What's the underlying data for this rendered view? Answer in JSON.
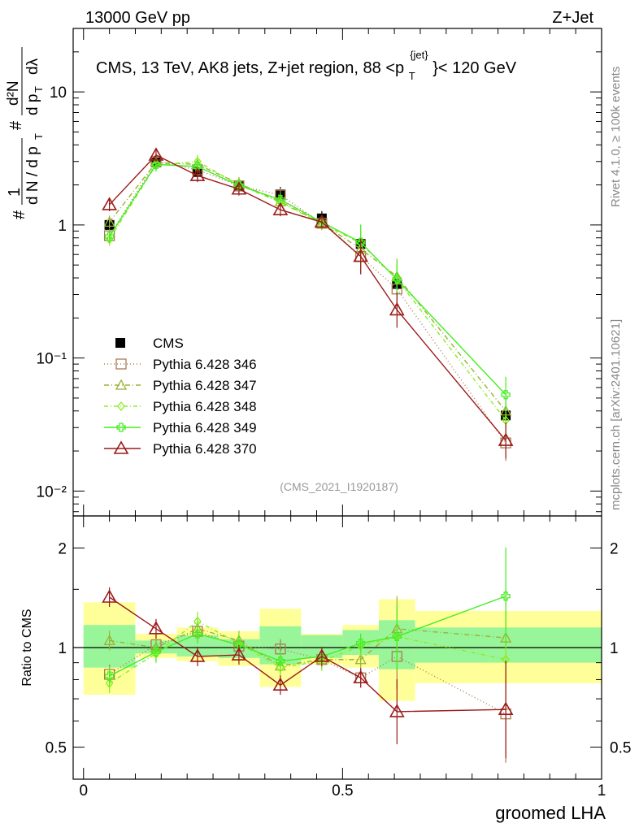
{
  "header": {
    "left": "13000 GeV pp",
    "right": "Z+Jet"
  },
  "side_labels": {
    "rivet": "Rivet 4.1.0, ≥ 100k events",
    "mcplots": "mcplots.cern.ch [arXiv:2401.10621]"
  },
  "chart_data": [
    {
      "type": "line",
      "panel": "main",
      "title": "CMS, 13 TeV, AK8 jets, Z+jet region, 88 < p_T^{jet} < 120 GeV",
      "title_text": {
        "prefix": "CMS, 13 TeV, AK8 jets, Z+jet region, 88 <p",
        "sub": "T",
        "sup": "{jet}",
        "suffix": "}< 120 GeV"
      },
      "ylabel": "1/dN/dp_T  d²N/(dp_T dλ)",
      "ylabel_text": {
        "hash1": "#",
        "one": "1",
        "denom": "d N / d p",
        "sub": "T",
        "hash2": "#",
        "num": "d²N",
        "dpt": "d p",
        "dlambda": "dλ"
      },
      "yscale": "log",
      "ylim": [
        0.0065,
        30
      ],
      "xlim": [
        -0.02,
        1.0
      ],
      "y_ticks": [
        "10⁻²",
        "10⁻¹",
        "1",
        "10"
      ],
      "watermark": "(CMS_2021_I1920187)",
      "legend_position": "center-left",
      "x": [
        0.05,
        0.14,
        0.22,
        0.3,
        0.38,
        0.46,
        0.535,
        0.605,
        0.815
      ],
      "series": [
        {
          "name": "CMS",
          "style": "data",
          "color": "#000000",
          "values": [
            1.0,
            2.95,
            2.5,
            1.95,
            1.7,
            1.12,
            0.72,
            0.36,
            0.037
          ]
        },
        {
          "name": "Pythia 6.428 346",
          "color": "#a97c50",
          "marker": "square",
          "dash": "1,3",
          "values": [
            0.83,
            3.0,
            2.6,
            1.97,
            1.68,
            1.03,
            0.58,
            0.33,
            0.023
          ]
        },
        {
          "name": "Pythia 6.428 347",
          "color": "#99b233",
          "marker": "triangle",
          "dash": "6,3,1,3",
          "values": [
            1.05,
            2.95,
            2.85,
            2.05,
            1.5,
            1.03,
            0.66,
            0.41,
            0.04
          ]
        },
        {
          "name": "Pythia 6.428 348",
          "color": "#88ee22",
          "marker": "diamond",
          "dash": "5,3,1,3",
          "values": [
            0.78,
            2.82,
            3.0,
            2.0,
            1.48,
            1.02,
            0.73,
            0.39,
            0.034
          ]
        },
        {
          "name": "Pythia 6.428 349",
          "color": "#44ee22",
          "marker": "cross",
          "dash": "",
          "values": [
            0.82,
            2.85,
            2.75,
            1.98,
            1.55,
            1.05,
            0.74,
            0.39,
            0.053
          ]
        },
        {
          "name": "Pythia 6.428 370",
          "color": "#9c1a1a",
          "marker": "triangle-open",
          "dash": "",
          "values": [
            1.42,
            3.35,
            2.35,
            1.86,
            1.3,
            1.05,
            0.58,
            0.23,
            0.024
          ]
        }
      ]
    },
    {
      "type": "line",
      "panel": "ratio",
      "ylabel": "Ratio to CMS",
      "xlabel": "groomed LHA",
      "ylim": [
        0.4,
        2.5
      ],
      "y_ticks": [
        0.5,
        1,
        2
      ],
      "y_tick_labels": [
        "0.5",
        "1",
        "2"
      ],
      "x_ticks": [
        0,
        0.5,
        1
      ],
      "x_tick_labels": [
        "0",
        "0.5",
        "1"
      ],
      "bins": [
        0.0,
        0.1,
        0.18,
        0.26,
        0.34,
        0.42,
        0.5,
        0.57,
        0.64,
        1.0
      ],
      "uncertainty_inner": [
        [
          0.87,
          1.17
        ],
        [
          0.96,
          1.05
        ],
        [
          0.94,
          1.09
        ],
        [
          0.93,
          1.06
        ],
        [
          0.89,
          1.16
        ],
        [
          0.93,
          1.09
        ],
        [
          0.95,
          1.13
        ],
        [
          0.86,
          1.21
        ],
        [
          0.9,
          1.15
        ]
      ],
      "uncertainty_outer": [
        [
          0.72,
          1.37
        ],
        [
          0.93,
          1.1
        ],
        [
          0.91,
          1.15
        ],
        [
          0.88,
          1.12
        ],
        [
          0.76,
          1.31
        ],
        [
          0.89,
          1.1
        ],
        [
          0.87,
          1.17
        ],
        [
          0.69,
          1.4
        ],
        [
          0.78,
          1.29
        ]
      ],
      "x": [
        0.05,
        0.14,
        0.22,
        0.3,
        0.38,
        0.46,
        0.535,
        0.605,
        0.815
      ],
      "series": [
        {
          "name": "Pythia 6.428 346",
          "values": [
            0.83,
            1.02,
            1.12,
            1.01,
            0.99,
            0.92,
            0.81,
            0.94,
            0.63
          ]
        },
        {
          "name": "Pythia 6.428 347",
          "values": [
            1.05,
            1.0,
            1.14,
            1.05,
            0.88,
            0.92,
            0.92,
            1.14,
            1.07
          ]
        },
        {
          "name": "Pythia 6.428 348",
          "values": [
            0.78,
            0.96,
            1.2,
            1.03,
            0.87,
            0.91,
            1.01,
            1.08,
            0.92
          ]
        },
        {
          "name": "Pythia 6.428 349",
          "values": [
            0.82,
            0.97,
            1.1,
            1.02,
            0.91,
            0.94,
            1.03,
            1.08,
            1.43
          ]
        },
        {
          "name": "Pythia 6.428 370",
          "values": [
            1.42,
            1.14,
            0.94,
            0.95,
            0.77,
            0.94,
            0.81,
            0.64,
            0.65
          ]
        }
      ]
    }
  ]
}
